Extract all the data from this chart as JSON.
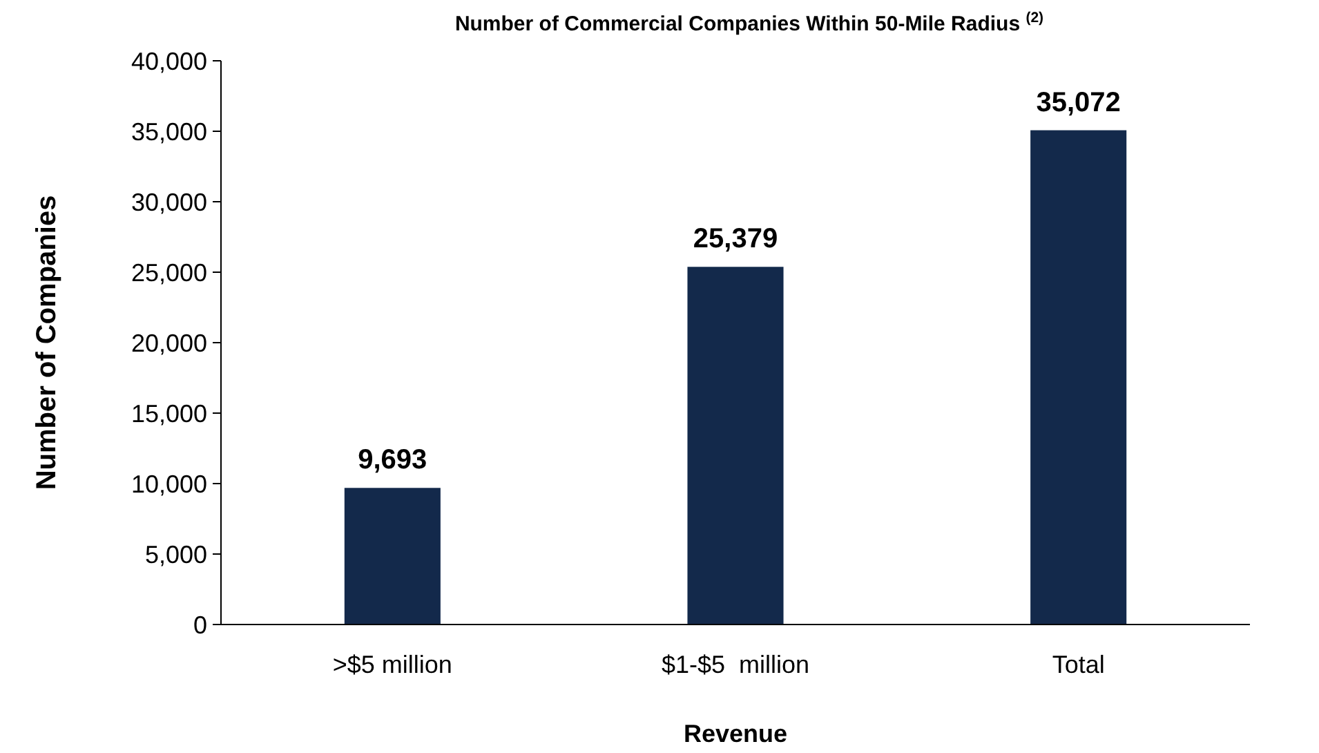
{
  "chart_data": {
    "type": "bar",
    "title": "Number of Commercial Companies Within 50-Mile Radius $^{(2)}$",
    "xlabel": "Revenue",
    "ylabel": "Number of Companies",
    "categories": [
      ">$5 million",
      "$1-$5  million",
      "Total"
    ],
    "values": [
      9693,
      25379,
      35072
    ],
    "color": "#13294b",
    "ylim": [
      0,
      40000
    ],
    "yticks": [
      {
        "value": 0,
        "label": "0"
      },
      {
        "value": 5000,
        "label": "5,000"
      },
      {
        "value": 10000,
        "label": "10,000"
      },
      {
        "value": 15000,
        "label": "15,000"
      },
      {
        "value": 20000,
        "label": "20,000"
      },
      {
        "value": 25000,
        "label": "25,000"
      },
      {
        "value": 30000,
        "label": "30,000"
      },
      {
        "value": 35000,
        "label": "35,000"
      },
      {
        "value": 40000,
        "label": "40,000"
      }
    ],
    "value_labels": [
      "9,693",
      "25,379",
      "35,072"
    ],
    "grid": false
  }
}
